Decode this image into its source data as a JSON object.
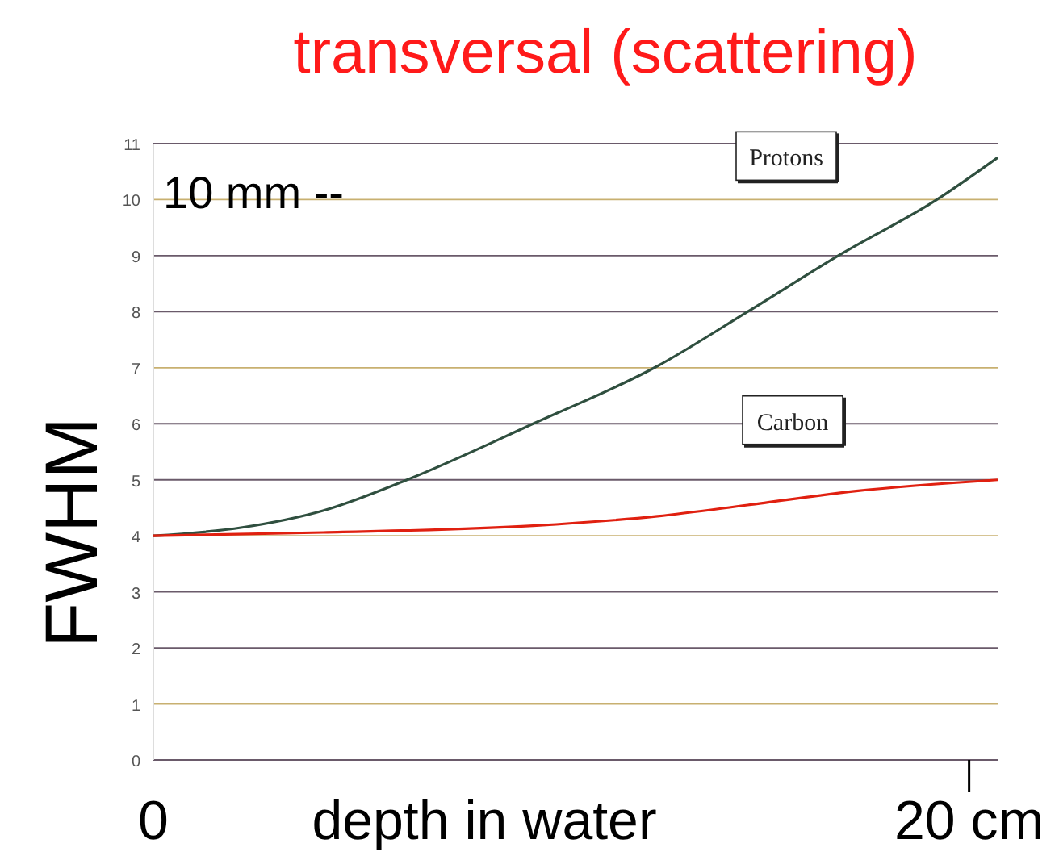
{
  "chart_data": {
    "type": "line",
    "title": "transversal (scattering)",
    "xlabel": "depth in water",
    "ylabel": "FWHM",
    "xlim": [
      0,
      20.7
    ],
    "xticks": [
      0,
      {
        "value": 20,
        "label": "20 cm"
      }
    ],
    "ylim": [
      0,
      11
    ],
    "yticks": [
      0,
      1,
      2,
      3,
      4,
      5,
      6,
      7,
      8,
      9,
      10,
      11
    ],
    "grid": "y",
    "marker": "none",
    "line_style": "solid",
    "annotations": [
      "10 mm --"
    ],
    "series": [
      {
        "name": "Protons",
        "color": "#2f4f3f",
        "x": [
          0,
          2.18,
          4.16,
          6.22,
          9.31,
          12.36,
          14.57,
          16.91,
          19.21,
          20.7
        ],
        "values": [
          4.0,
          4.15,
          4.45,
          5.0,
          6.0,
          7.03,
          8.0,
          9.05,
          10.0,
          10.75
        ]
      },
      {
        "name": "Carbon",
        "color": "#e02010",
        "x": [
          0,
          4.16,
          9.31,
          12.36,
          14.57,
          17.23,
          20.7
        ],
        "values": [
          4.0,
          4.06,
          4.18,
          4.35,
          4.55,
          4.8,
          5.0
        ]
      }
    ]
  }
}
